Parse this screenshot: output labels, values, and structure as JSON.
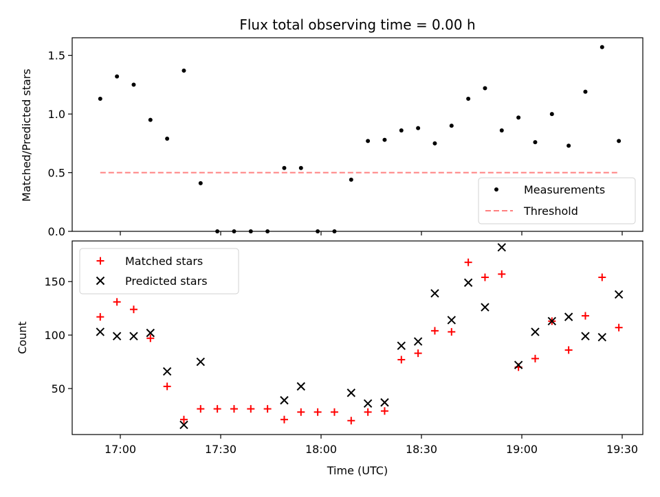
{
  "chart_data": [
    {
      "type": "scatter",
      "title": "Flux total observing time = 0.00 h",
      "ylabel": "Matched/Predicted stars",
      "xlabel": "",
      "ylim": [
        0,
        1.65
      ],
      "yticks": [
        "0.0",
        "0.5",
        "1.0",
        "1.5"
      ],
      "ytick_values": [
        0,
        0.5,
        1.0,
        1.5
      ],
      "grid": false,
      "legend_position": "lower-right",
      "series": [
        {
          "name": "Measurements",
          "kind": "scatter",
          "color": "#000000",
          "x": [
            "16:54",
            "16:59",
            "17:04",
            "17:09",
            "17:14",
            "17:19",
            "17:24",
            "17:29",
            "17:34",
            "17:39",
            "17:44",
            "17:49",
            "17:54",
            "17:59",
            "18:04",
            "18:09",
            "18:14",
            "18:19",
            "18:24",
            "18:29",
            "18:34",
            "18:39",
            "18:44",
            "18:49",
            "18:54",
            "18:59",
            "19:04",
            "19:09",
            "19:14",
            "19:19",
            "19:24",
            "19:29"
          ],
          "y": [
            1.13,
            1.32,
            1.25,
            0.95,
            0.79,
            1.37,
            0.41,
            0.0,
            0.0,
            0.0,
            0.0,
            0.54,
            0.54,
            0.0,
            0.0,
            0.44,
            0.77,
            0.78,
            0.86,
            0.88,
            0.75,
            0.9,
            1.13,
            1.22,
            0.86,
            0.97,
            0.76,
            1.0,
            0.73,
            1.19,
            1.57,
            0.77
          ]
        },
        {
          "name": "Threshold",
          "kind": "line",
          "color": "#ff7f7f",
          "x": [
            "16:54",
            "19:29"
          ],
          "y": [
            0.5,
            0.5
          ]
        }
      ]
    },
    {
      "type": "scatter",
      "title": "",
      "ylabel": "Count",
      "xlabel": "Time (UTC)",
      "ylim": [
        7,
        188
      ],
      "yticks": [
        "50",
        "100",
        "150"
      ],
      "ytick_values": [
        50,
        100,
        150
      ],
      "xticks": [
        "17:00",
        "17:30",
        "18:00",
        "18:30",
        "19:00",
        "19:30"
      ],
      "grid": false,
      "legend_position": "upper-left",
      "series": [
        {
          "name": "Matched stars",
          "marker": "plus",
          "color": "#ff0000",
          "x": [
            "16:54",
            "16:59",
            "17:04",
            "17:09",
            "17:14",
            "17:19",
            "17:24",
            "17:29",
            "17:34",
            "17:39",
            "17:44",
            "17:49",
            "17:54",
            "17:59",
            "18:04",
            "18:09",
            "18:14",
            "18:19",
            "18:24",
            "18:29",
            "18:34",
            "18:39",
            "18:44",
            "18:49",
            "18:54",
            "18:59",
            "19:04",
            "19:09",
            "19:14",
            "19:19",
            "19:24",
            "19:29"
          ],
          "y": [
            117,
            131,
            124,
            97,
            52,
            21,
            31,
            31,
            31,
            31,
            31,
            21,
            28,
            28,
            28,
            20,
            28,
            29,
            77,
            83,
            104,
            103,
            168,
            154,
            157,
            70,
            78,
            113,
            86,
            118,
            154,
            107
          ]
        },
        {
          "name": "Predicted stars",
          "marker": "x",
          "color": "#000000",
          "x": [
            "16:54",
            "16:59",
            "17:04",
            "17:09",
            "17:14",
            "17:19",
            "17:24",
            "17:49",
            "17:54",
            "18:09",
            "18:14",
            "18:19",
            "18:24",
            "18:29",
            "18:34",
            "18:39",
            "18:44",
            "18:49",
            "18:54",
            "18:59",
            "19:04",
            "19:09",
            "19:14",
            "19:19",
            "19:24",
            "19:29"
          ],
          "y": [
            103,
            99,
            99,
            102,
            66,
            16,
            75,
            39,
            52,
            46,
            36,
            37,
            90,
            94,
            139,
            114,
            149,
            126,
            182,
            72,
            103,
            113,
            117,
            99,
            98,
            138
          ]
        }
      ]
    }
  ]
}
